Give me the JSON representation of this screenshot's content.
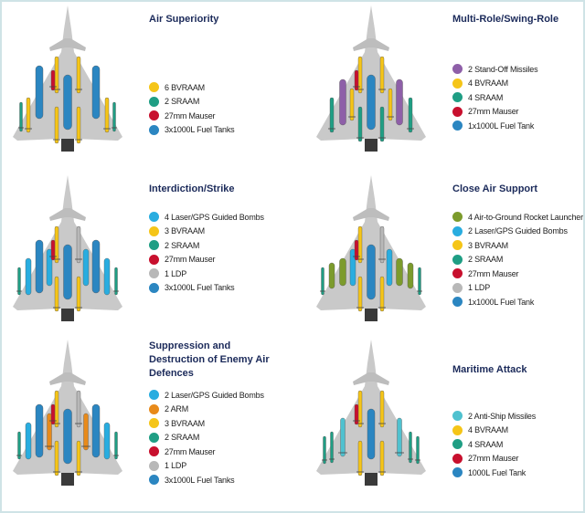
{
  "colors": {
    "bvraam": "#f5c518",
    "sraam": "#1f9e84",
    "mauser": "#c8102e",
    "fuel": "#2b86c1",
    "standoff": "#8e5fa8",
    "laser": "#29ade0",
    "arm": "#e88a1a",
    "ldp": "#b8b8b8",
    "rocket": "#7c9b2c",
    "antiship": "#4fc1cf"
  },
  "panels": [
    {
      "title": "Air Superiority",
      "items": [
        {
          "label": "6 BVRAAM",
          "color": "#f5c518"
        },
        {
          "label": "2 SRAAM",
          "color": "#1f9e84"
        },
        {
          "label": "27mm Mauser",
          "color": "#c8102e"
        },
        {
          "label": "3x1000L Fuel Tanks",
          "color": "#2b86c1"
        }
      ]
    },
    {
      "title": "Multi-Role/Swing-Role",
      "items": [
        {
          "label": "2 Stand-Off Missiles",
          "color": "#8e5fa8"
        },
        {
          "label": "4 BVRAAM",
          "color": "#f5c518"
        },
        {
          "label": "4 SRAAM",
          "color": "#1f9e84"
        },
        {
          "label": "27mm Mauser",
          "color": "#c8102e"
        },
        {
          "label": "1x1000L Fuel Tank",
          "color": "#2b86c1"
        }
      ]
    },
    {
      "title": "Interdiction/Strike",
      "items": [
        {
          "label": "4 Laser/GPS Guided Bombs",
          "color": "#29ade0"
        },
        {
          "label": "3 BVRAAM",
          "color": "#f5c518"
        },
        {
          "label": "2 SRAAM",
          "color": "#1f9e84"
        },
        {
          "label": "27mm Mauser",
          "color": "#c8102e"
        },
        {
          "label": "1 LDP",
          "color": "#b8b8b8"
        },
        {
          "label": "3x1000L Fuel Tanks",
          "color": "#2b86c1"
        }
      ]
    },
    {
      "title": "Close Air Support",
      "items": [
        {
          "label": "4 Air-to-Ground Rocket Launcher",
          "color": "#7c9b2c"
        },
        {
          "label": "2 Laser/GPS Guided Bombs",
          "color": "#29ade0"
        },
        {
          "label": "3 BVRAAM",
          "color": "#f5c518"
        },
        {
          "label": "2 SRAAM",
          "color": "#1f9e84"
        },
        {
          "label": "27mm Mauser",
          "color": "#c8102e"
        },
        {
          "label": "1 LDP",
          "color": "#b8b8b8"
        },
        {
          "label": "1x1000L Fuel Tank",
          "color": "#2b86c1"
        }
      ]
    },
    {
      "title": "Suppression and Destruction of Enemy Air Defences",
      "items": [
        {
          "label": "2 Laser/GPS Guided Bombs",
          "color": "#29ade0"
        },
        {
          "label": "2 ARM",
          "color": "#e88a1a"
        },
        {
          "label": "3 BVRAAM",
          "color": "#f5c518"
        },
        {
          "label": "2 SRAAM",
          "color": "#1f9e84"
        },
        {
          "label": "27mm Mauser",
          "color": "#c8102e"
        },
        {
          "label": "1 LDP",
          "color": "#b8b8b8"
        },
        {
          "label": "3x1000L Fuel Tanks",
          "color": "#2b86c1"
        }
      ]
    },
    {
      "title": "Maritime Attack",
      "items": [
        {
          "label": "2 Anti-Ship Missiles",
          "color": "#4fc1cf"
        },
        {
          "label": "4 BVRAAM",
          "color": "#f5c518"
        },
        {
          "label": "4 SRAAM",
          "color": "#1f9e84"
        },
        {
          "label": "27mm Mauser",
          "color": "#c8102e"
        },
        {
          "label": "1000L Fuel Tank",
          "color": "#2b86c1"
        }
      ]
    }
  ]
}
